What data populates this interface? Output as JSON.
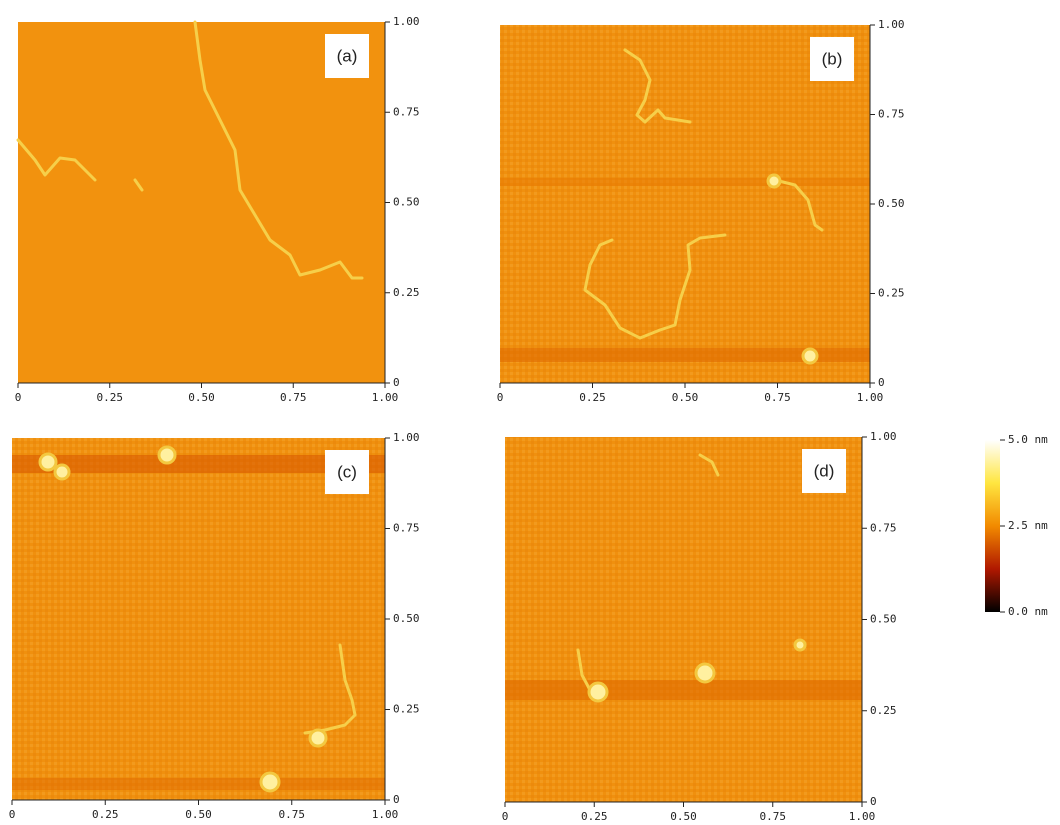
{
  "panels": [
    {
      "label": "(a)",
      "xticks": [
        "0",
        "0.25",
        "0.50",
        "0.75",
        "1.00"
      ],
      "yticks": [
        "0",
        "0.25",
        "0.50",
        "0.75",
        "1.00"
      ]
    },
    {
      "label": "(b)",
      "xticks": [
        "0",
        "0.25",
        "0.50",
        "0.75",
        "1.00"
      ],
      "yticks": [
        "0",
        "0.25",
        "0.50",
        "0.75",
        "1.00"
      ]
    },
    {
      "label": "(c)",
      "xticks": [
        "0",
        "0.25",
        "0.50",
        "0.75",
        "1.00"
      ],
      "yticks": [
        "0",
        "0.25",
        "0.50",
        "0.75",
        "1.00"
      ]
    },
    {
      "label": "(d)",
      "xticks": [
        "0",
        "0.25",
        "0.50",
        "0.75",
        "1.00"
      ],
      "yticks": [
        "0",
        "0.25",
        "0.50",
        "0.75",
        "1.00"
      ]
    }
  ],
  "colorbar": {
    "labels": [
      "5.0 nm",
      "2.5 nm",
      "0.0 nm"
    ]
  }
}
